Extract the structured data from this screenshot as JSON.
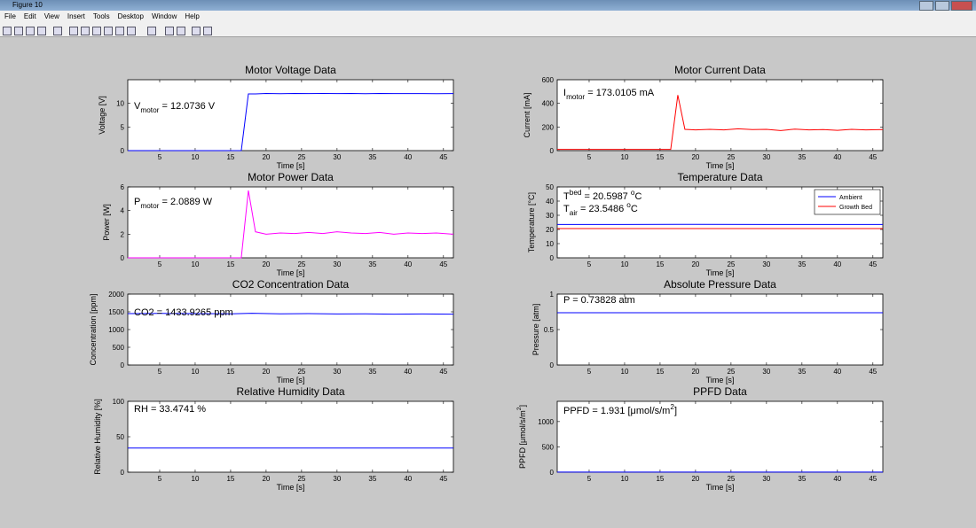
{
  "window": {
    "title": "Figure 10",
    "menu": [
      "File",
      "Edit",
      "View",
      "Insert",
      "Tools",
      "Desktop",
      "Window",
      "Help"
    ]
  },
  "chart_data": [
    {
      "type": "line",
      "title": "Motor Voltage Data",
      "xlabel": "Time [s]",
      "ylabel": "Voltage [V]",
      "annotation": [
        [
          {
            "text": "V"
          },
          {
            "text": "motor",
            "shift": "sub"
          },
          {
            "text": " = 12.0736 V"
          }
        ]
      ],
      "x": [
        0.5,
        16.5,
        17.5,
        18.5,
        20,
        22,
        24,
        26,
        28,
        30,
        32,
        34,
        36,
        38,
        40,
        42,
        44,
        46.4
      ],
      "values": [
        0,
        0,
        12,
        12,
        12.1,
        12.05,
        12.1,
        12.08,
        12.1,
        12.07,
        12.1,
        12.05,
        12.1,
        12.07,
        12.08,
        12.06,
        12.05,
        12.07
      ],
      "color": "#0000ff",
      "xlim": [
        0.5,
        46.4
      ],
      "xticks": [
        5,
        10,
        15,
        20,
        25,
        30,
        35,
        40,
        45
      ],
      "ylim": [
        0,
        15
      ],
      "yticks": [
        0,
        5,
        10
      ]
    },
    {
      "type": "line",
      "title": "Motor Current Data",
      "xlabel": "Time [s]",
      "ylabel": "Current [mA]",
      "annotation": [
        [
          {
            "text": "I"
          },
          {
            "text": "motor",
            "shift": "sub"
          },
          {
            "text": " = 173.0105 mA"
          }
        ]
      ],
      "x": [
        0.5,
        16.5,
        17.5,
        18.5,
        20,
        22,
        24,
        26,
        28,
        30,
        32,
        34,
        36,
        38,
        40,
        42,
        44,
        46.4
      ],
      "values": [
        10,
        10,
        470,
        180,
        175,
        180,
        175,
        185,
        178,
        180,
        170,
        182,
        175,
        178,
        172,
        180,
        175,
        178
      ],
      "color": "#ff0000",
      "xlim": [
        0.5,
        46.4
      ],
      "xticks": [
        5,
        10,
        15,
        20,
        25,
        30,
        35,
        40,
        45
      ],
      "ylim": [
        0,
        600
      ],
      "yticks": [
        0,
        200,
        400,
        600
      ]
    },
    {
      "type": "line",
      "title": "Motor Power Data",
      "xlabel": "Time [s]",
      "ylabel": "Power [W]",
      "annotation": [
        [
          {
            "text": "P"
          },
          {
            "text": "motor",
            "shift": "sub"
          },
          {
            "text": " = 2.0889 W"
          }
        ]
      ],
      "x": [
        0.5,
        16.5,
        17.5,
        18.5,
        20,
        22,
        24,
        26,
        28,
        30,
        32,
        34,
        36,
        38,
        40,
        42,
        44,
        46.4
      ],
      "values": [
        0,
        0,
        5.7,
        2.2,
        2,
        2.1,
        2.05,
        2.15,
        2.05,
        2.2,
        2.1,
        2.05,
        2.15,
        2,
        2.1,
        2.05,
        2.1,
        2
      ],
      "color": "#ff00ff",
      "xlim": [
        0.5,
        46.4
      ],
      "xticks": [
        5,
        10,
        15,
        20,
        25,
        30,
        35,
        40,
        45
      ],
      "ylim": [
        0,
        6
      ],
      "yticks": [
        0,
        2,
        4,
        6
      ]
    },
    {
      "type": "line",
      "title": "Temperature Data",
      "xlabel": "Time [s]",
      "ylabel": "Temperature [°C]",
      "annotation": [
        [
          {
            "text": "T"
          },
          {
            "text": "bed",
            "shift": "sup"
          },
          {
            "text": " = 20.5987 "
          },
          {
            "text": "o",
            "shift": "sup"
          },
          {
            "text": "C"
          }
        ],
        [
          {
            "text": "T"
          },
          {
            "text": "air",
            "shift": "sub"
          },
          {
            "text": " = 23.5486 "
          },
          {
            "text": "o",
            "shift": "sup"
          },
          {
            "text": "C"
          }
        ]
      ],
      "x": [
        0.5,
        10,
        20,
        30,
        40,
        46.4
      ],
      "series": [
        {
          "name": "Ambient",
          "color": "#0000ff",
          "values": [
            23.5,
            23.5,
            23.6,
            23.5,
            23.5,
            23.5
          ]
        },
        {
          "name": "Growth Bed",
          "color": "#ff0000",
          "values": [
            20.6,
            20.6,
            20.6,
            20.6,
            20.6,
            20.6
          ]
        }
      ],
      "legend": "northeast",
      "xlim": [
        0.5,
        46.4
      ],
      "xticks": [
        5,
        10,
        15,
        20,
        25,
        30,
        35,
        40,
        45
      ],
      "ylim": [
        0,
        50
      ],
      "yticks": [
        0,
        10,
        20,
        30,
        40,
        50
      ]
    },
    {
      "type": "line",
      "title": "CO2 Concentration Data",
      "xlabel": "Time [s]",
      "ylabel": "Concentration [ppm]",
      "annotation": [
        [
          {
            "text": "CO2 = 1433.9265 ppm"
          }
        ]
      ],
      "x": [
        0.5,
        5,
        10,
        15,
        18,
        22,
        26,
        30,
        34,
        38,
        42,
        46.4
      ],
      "values": [
        1450,
        1455,
        1450,
        1445,
        1460,
        1445,
        1450,
        1440,
        1445,
        1435,
        1440,
        1434
      ],
      "color": "#0000ff",
      "xlim": [
        0.5,
        46.4
      ],
      "xticks": [
        5,
        10,
        15,
        20,
        25,
        30,
        35,
        40,
        45
      ],
      "ylim": [
        0,
        2000
      ],
      "yticks": [
        0,
        500,
        1000,
        1500,
        2000
      ]
    },
    {
      "type": "line",
      "title": "Absolute Pressure Data",
      "xlabel": "Time [s]",
      "ylabel": "Pressure [atm]",
      "annotation": [
        [
          {
            "text": "P = 0.73828 atm"
          }
        ]
      ],
      "x": [
        0.5,
        46.4
      ],
      "values": [
        0.738,
        0.738
      ],
      "color": "#0000ff",
      "xlim": [
        0.5,
        46.4
      ],
      "xticks": [
        5,
        10,
        15,
        20,
        25,
        30,
        35,
        40,
        45
      ],
      "ylim": [
        0,
        1
      ],
      "yticks": [
        0,
        0.5,
        1
      ]
    },
    {
      "type": "line",
      "title": "Relative Humidity Data",
      "xlabel": "Time [s]",
      "ylabel": "Relative Humidity [%]",
      "annotation": [
        [
          {
            "text": "RH = 33.4741 %"
          }
        ]
      ],
      "x": [
        0.5,
        46.4
      ],
      "values": [
        34,
        34
      ],
      "color": "#0000ff",
      "xlim": [
        0.5,
        46.4
      ],
      "xticks": [
        5,
        10,
        15,
        20,
        25,
        30,
        35,
        40,
        45
      ],
      "ylim": [
        0,
        100
      ],
      "yticks": [
        0,
        50,
        100
      ]
    },
    {
      "type": "line",
      "title": "PPFD Data",
      "xlabel": "Time [s]",
      "ylabel": [
        {
          "text": "PPFD [μmol/s/m"
        },
        {
          "text": "2",
          "shift": "sup"
        },
        {
          "text": "]"
        }
      ],
      "annotation": [
        [
          {
            "text": "PPFD = 1.931 [μmol/s/m"
          },
          {
            "text": "2",
            "shift": "sup"
          },
          {
            "text": "]"
          }
        ]
      ],
      "x": [
        0.5,
        46.4
      ],
      "values": [
        2,
        2
      ],
      "color": "#0000ff",
      "xlim": [
        0.5,
        46.4
      ],
      "xticks": [
        5,
        10,
        15,
        20,
        25,
        30,
        35,
        40,
        45
      ],
      "ylim": [
        0,
        1400
      ],
      "yticks": [
        0,
        500,
        1000
      ]
    }
  ]
}
